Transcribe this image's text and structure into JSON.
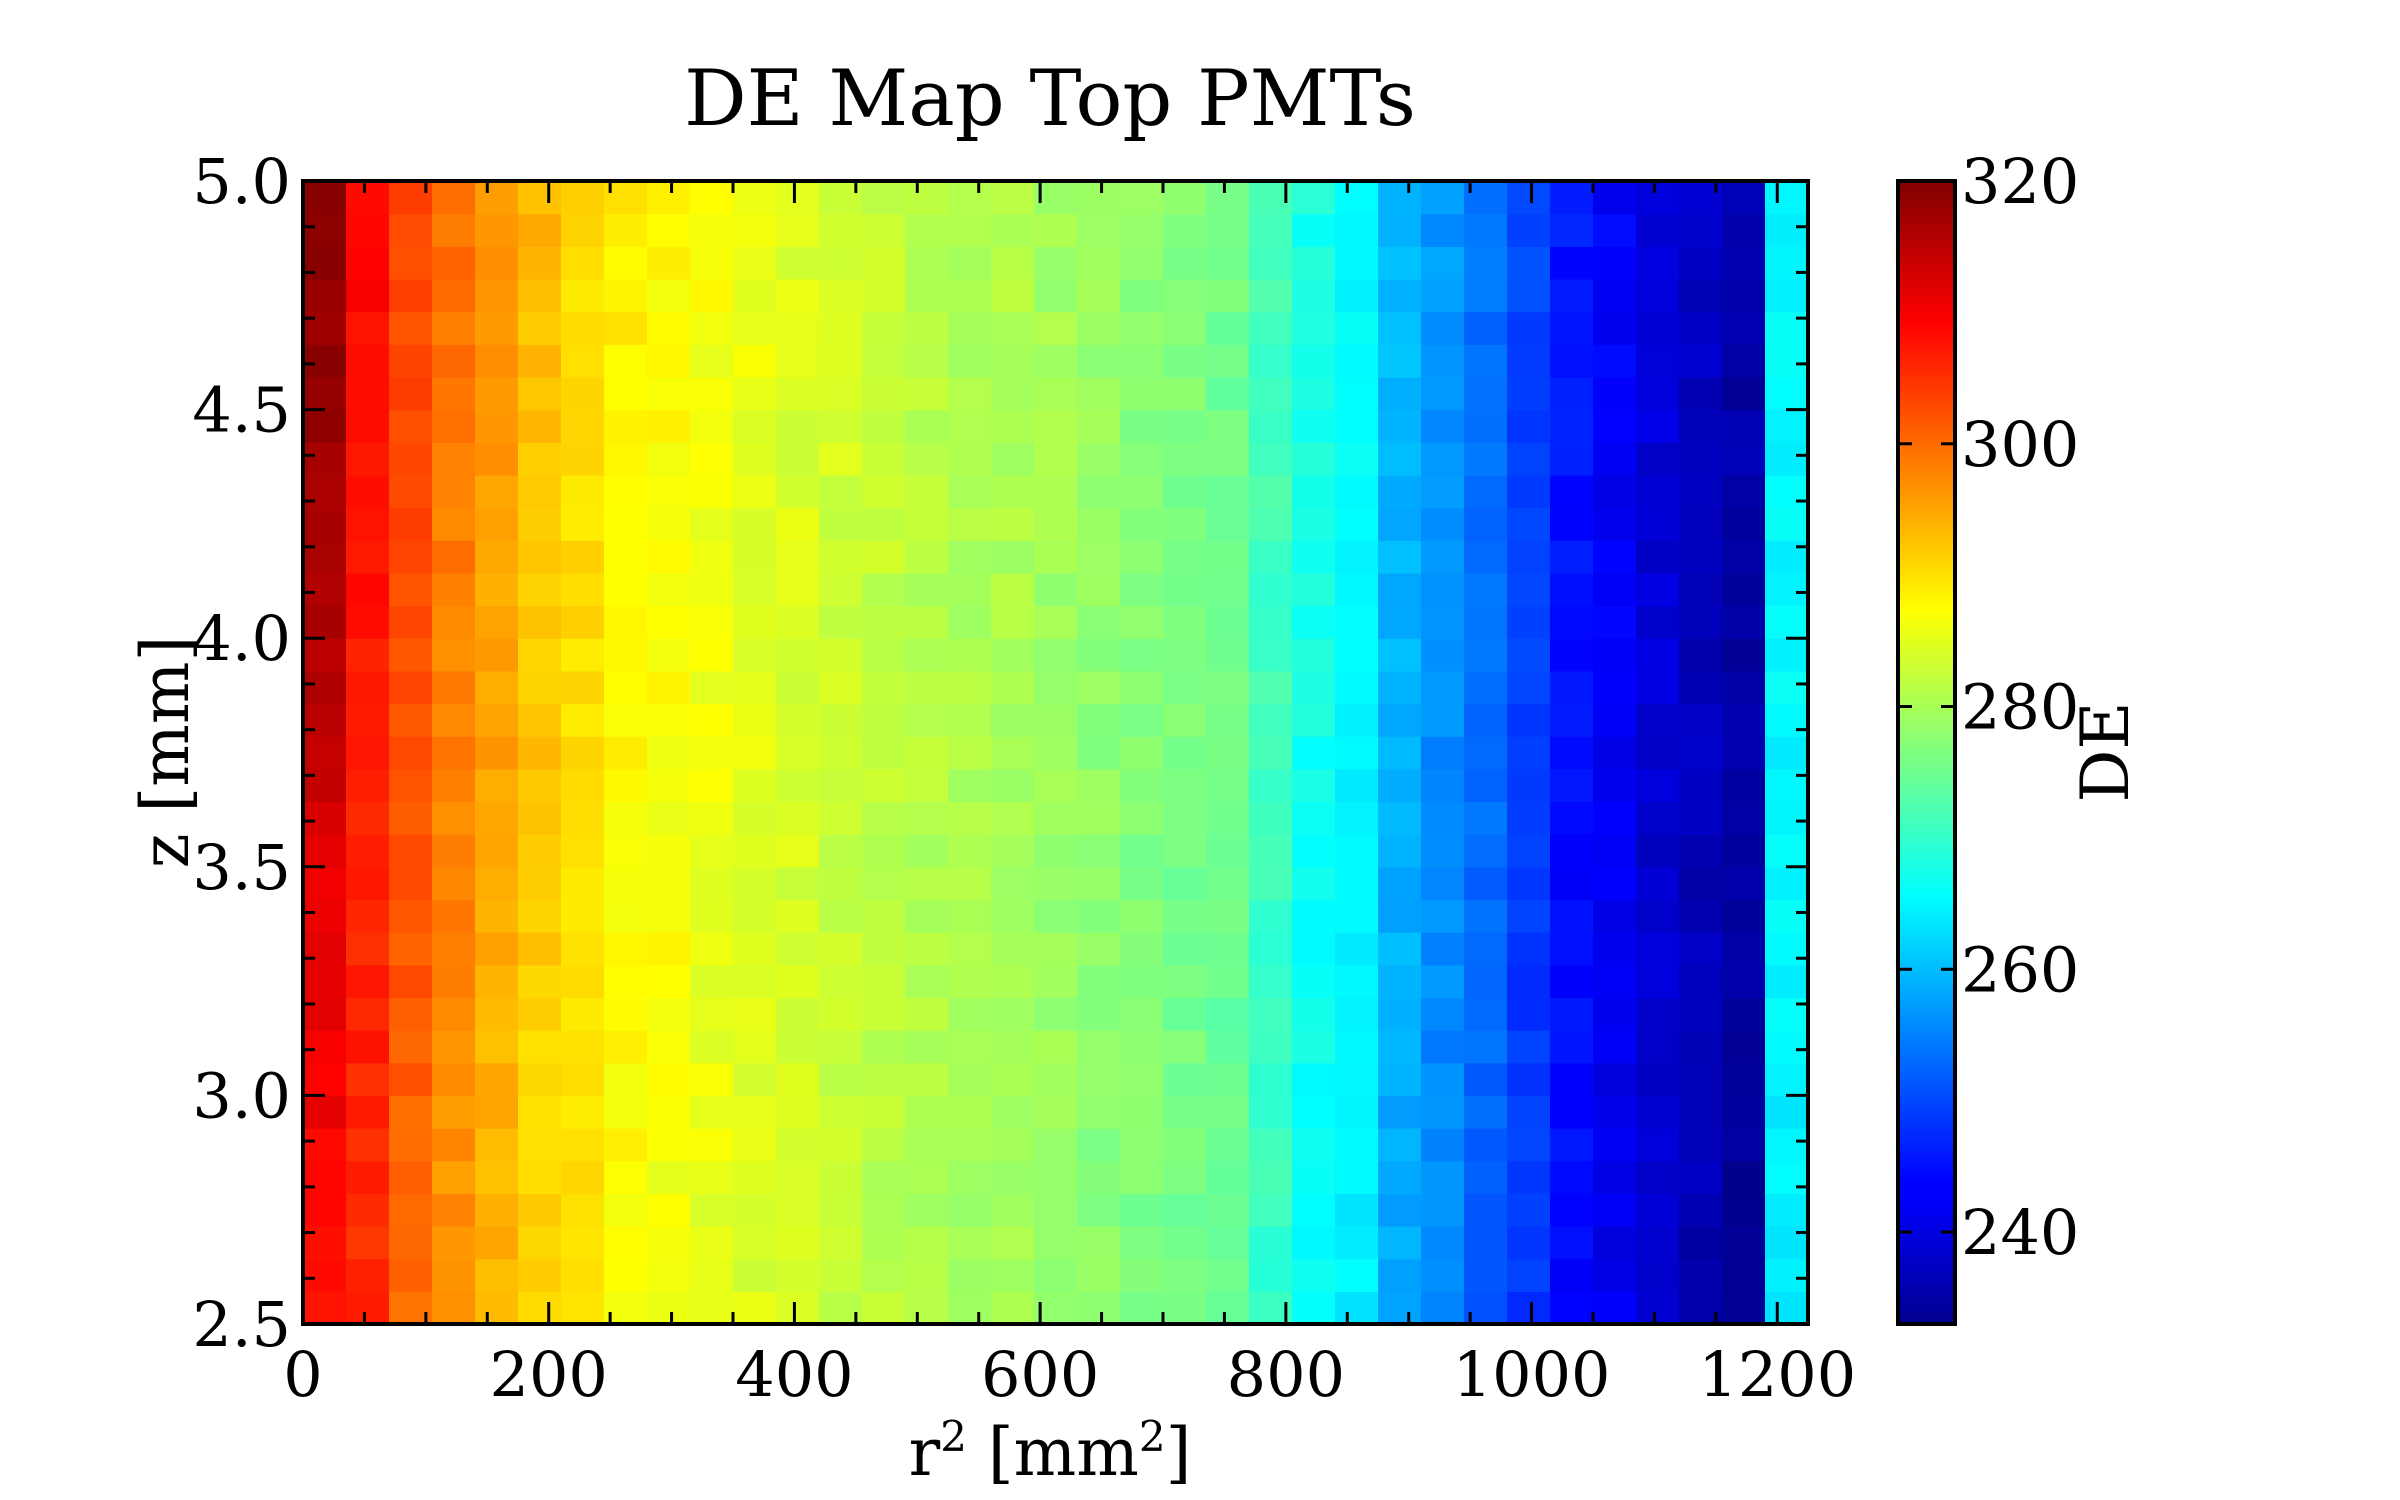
{
  "chart_data": {
    "type": "heatmap",
    "title": "DE Map Top PMTs",
    "xlabel": "r² [mm²]",
    "ylabel": "z [mm]",
    "xlim": [
      0,
      1225
    ],
    "ylim": [
      2.5,
      5.0
    ],
    "x_ticks": [
      "0",
      "200",
      "400",
      "600",
      "800",
      "1000",
      "1200"
    ],
    "x_tick_values": [
      0,
      200,
      400,
      600,
      800,
      1000,
      1200
    ],
    "y_ticks": [
      "2.5",
      "3.0",
      "3.5",
      "4.0",
      "4.5",
      "5.0"
    ],
    "y_tick_values": [
      2.5,
      3.0,
      3.5,
      4.0,
      4.5,
      5.0
    ],
    "colorbar": {
      "label": "DE",
      "min": 233,
      "max": 320,
      "ticks": [
        "240",
        "260",
        "280",
        "300",
        "320"
      ],
      "tick_values": [
        240,
        260,
        280,
        300,
        320
      ],
      "colormap": "jet"
    },
    "bins": {
      "x_edges_range": [
        0,
        1225
      ],
      "n_x": 35,
      "y_edges_range": [
        2.5,
        5.0
      ],
      "n_y": 35
    },
    "column_profile_DE": [
      314,
      307,
      302,
      298,
      295,
      292,
      290,
      288,
      287,
      286,
      285,
      284,
      283,
      282,
      281,
      280,
      280,
      279,
      278,
      277,
      276,
      275,
      271,
      267,
      265,
      259,
      256,
      253,
      249,
      245,
      243,
      240,
      238,
      236,
      265
    ],
    "left_column_z_profile": {
      "z": [
        2.5,
        3.5,
        4.0,
        5.0
      ],
      "DE": [
        309,
        311,
        316,
        319
      ]
    },
    "grid": false
  }
}
